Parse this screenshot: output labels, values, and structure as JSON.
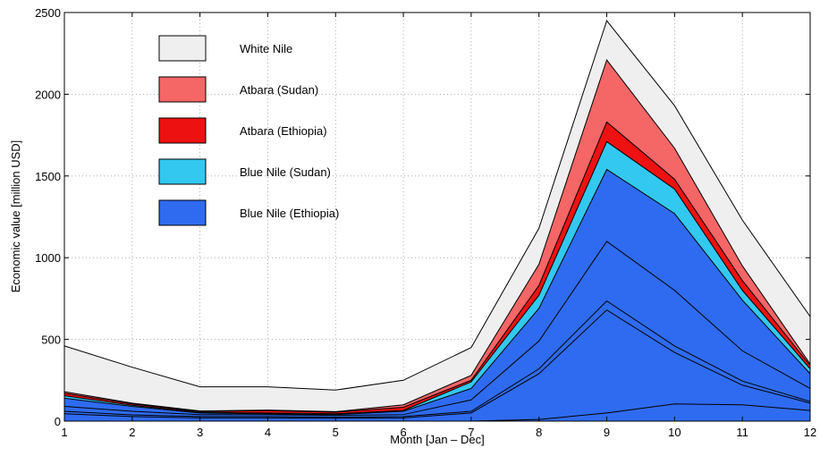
{
  "chart_data": {
    "type": "area",
    "stacked": true,
    "title": "",
    "xlabel": "Month [Jan – Dec]",
    "ylabel": "Economic value [million USD]",
    "xlim": [
      1,
      12
    ],
    "ylim": [
      0,
      2500
    ],
    "grid": true,
    "legend_position": "top-left",
    "x": [
      1,
      2,
      3,
      4,
      5,
      6,
      7,
      8,
      9,
      10,
      11,
      12
    ],
    "x_ticks": [
      "1",
      "2",
      "3",
      "4",
      "5",
      "6",
      "7",
      "8",
      "9",
      "10",
      "11",
      "12"
    ],
    "y_ticks": [
      "0",
      "500",
      "1000",
      "1500",
      "2000",
      "2500"
    ],
    "y_tick_values": [
      0,
      500,
      1000,
      1500,
      2000,
      2500
    ],
    "stack_layers": [
      {
        "legend": "Blue Nile (Ethiopia)",
        "color": "#2f6bf0",
        "values": [
          0,
          0,
          0,
          0,
          0,
          0,
          0,
          10,
          50,
          105,
          100,
          65
        ]
      },
      {
        "legend": "Blue Nile (Ethiopia)",
        "color": "#2f6bf0",
        "values": [
          45,
          28,
          20,
          20,
          18,
          20,
          50,
          290,
          680,
          420,
          220,
          110
        ]
      },
      {
        "legend": "Blue Nile (Ethiopia)",
        "color": "#2f6bf0",
        "values": [
          60,
          38,
          28,
          28,
          24,
          28,
          60,
          320,
          735,
          460,
          245,
          120
        ]
      },
      {
        "legend": "Blue Nile (Ethiopia)",
        "color": "#2f6bf0",
        "values": [
          90,
          60,
          40,
          40,
          35,
          40,
          130,
          490,
          1100,
          800,
          430,
          200
        ]
      },
      {
        "legend": "Blue Nile (Ethiopia)",
        "color": "#2f6bf0",
        "values": [
          140,
          90,
          50,
          45,
          40,
          60,
          200,
          690,
          1540,
          1270,
          740,
          290
        ]
      },
      {
        "legend": "Blue Nile (Sudan)",
        "color": "#33c8ef",
        "values": [
          155,
          97,
          53,
          50,
          45,
          65,
          240,
          770,
          1710,
          1420,
          800,
          320
        ]
      },
      {
        "legend": "Atbara (Ethiopia)",
        "color": "#ee1111",
        "values": [
          170,
          105,
          58,
          65,
          55,
          85,
          250,
          830,
          1830,
          1480,
          860,
          340
        ]
      },
      {
        "legend": "Atbara (Sudan)",
        "color": "#f56666",
        "values": [
          180,
          110,
          62,
          68,
          58,
          100,
          280,
          960,
          2210,
          1670,
          950,
          350
        ]
      },
      {
        "legend": "White Nile",
        "color": "#efefef",
        "values": [
          460,
          330,
          210,
          210,
          190,
          250,
          450,
          1180,
          2450,
          1930,
          1230,
          640
        ]
      }
    ],
    "legend": [
      {
        "label": "White Nile",
        "color": "#efefef"
      },
      {
        "label": "Atbara (Sudan)",
        "color": "#f56666"
      },
      {
        "label": "Atbara (Ethiopia)",
        "color": "#ee1111"
      },
      {
        "label": "Blue Nile (Sudan)",
        "color": "#33c8ef"
      },
      {
        "label": "Blue Nile (Ethiopia)",
        "color": "#2f6bf0"
      }
    ]
  }
}
